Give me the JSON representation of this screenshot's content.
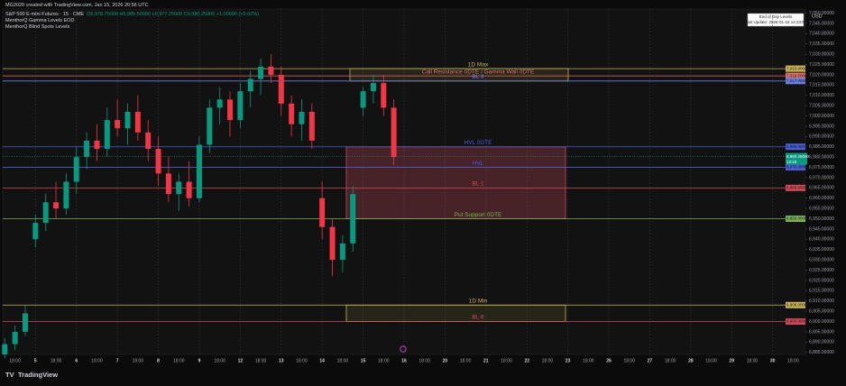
{
  "header": {
    "credit": "MG2020 created with TradingView.com, Jan 15, 2026 20:56 UTC",
    "symbol": "S&P 500 E-mini Futures · 15 · CME",
    "ohlc": "O6,978.75000 H6,985.50000 L6,977.25000 C6,980.25000 +1.00000 (+0.02%)",
    "indicators": [
      "MenthorQ Gamma Levels EOD",
      "MenthorQ Blind Spots Levels"
    ],
    "info_box": [
      "End of Day Levels",
      "Last Update: 2026-01-15 14:23:58"
    ],
    "currency": "USD",
    "brand": "TradingView"
  },
  "chart_data": {
    "type": "candlestick",
    "x": [
      -0.5,
      0,
      0.5,
      1,
      1.5,
      2,
      2.5,
      3,
      3.5,
      4,
      4.5,
      5,
      5.5,
      6,
      6.5,
      7,
      7.5,
      8,
      8.5,
      9,
      9.5,
      10,
      10.5,
      11,
      11.5,
      12,
      12.5,
      13,
      13.5,
      14,
      14.5,
      15,
      15.5,
      16,
      16.5,
      17,
      17.5,
      18,
      18.5
    ],
    "open": [
      6884,
      6889,
      6895,
      6940,
      6948,
      6958,
      6955,
      6968,
      6980,
      6988,
      6984,
      6998,
      6994,
      7002,
      6992,
      6984,
      6972,
      6962,
      6968,
      6960,
      6986,
      7004,
      7008,
      6998,
      7012,
      7018,
      7024,
      7020,
      7006,
      6996,
      7002,
      6960,
      6946,
      6930,
      6938,
      7004,
      7012,
      7016,
      7004
    ],
    "high": [
      6892,
      6898,
      6908,
      6952,
      6962,
      6968,
      6972,
      6985,
      6992,
      6996,
      7004,
      7008,
      7006,
      7010,
      6998,
      6990,
      6980,
      6972,
      6978,
      6990,
      7008,
      7014,
      7012,
      7016,
      7022,
      7028,
      7030,
      7024,
      7010,
      7008,
      7006,
      6968,
      6950,
      6942,
      6966,
      7014,
      7020,
      7020,
      7008
    ],
    "low": [
      6882,
      6886,
      6893,
      6936,
      6944,
      6950,
      6952,
      6962,
      6974,
      6978,
      6980,
      6990,
      6986,
      6988,
      6978,
      6966,
      6958,
      6954,
      6956,
      6958,
      6982,
      6996,
      6990,
      6994,
      7004,
      7010,
      7016,
      7000,
      6990,
      6988,
      6984,
      6940,
      6922,
      6924,
      6934,
      7000,
      7006,
      7000,
      6976
    ],
    "close": [
      6889,
      6895,
      6904,
      6948,
      6958,
      6955,
      6968,
      6980,
      6988,
      6984,
      6998,
      6994,
      7002,
      6992,
      6984,
      6972,
      6962,
      6968,
      6960,
      6986,
      7004,
      7008,
      6998,
      7012,
      7018,
      7024,
      7020,
      7006,
      6996,
      7002,
      6988,
      6946,
      6930,
      6938,
      6962,
      7012,
      7016,
      7004,
      6980
    ],
    "up_color": "#089981",
    "down_color": "#f23645",
    "xlim": [
      -0.6,
      38.6
    ],
    "xticks": [
      {
        "value": 0,
        "label": "18:00"
      },
      {
        "value": 1,
        "label": "5"
      },
      {
        "value": 2,
        "label": "18:00"
      },
      {
        "value": 3,
        "label": "6"
      },
      {
        "value": 4,
        "label": "18:00"
      },
      {
        "value": 5,
        "label": "7"
      },
      {
        "value": 6,
        "label": "18:00"
      },
      {
        "value": 7,
        "label": "8"
      },
      {
        "value": 8,
        "label": "18:00"
      },
      {
        "value": 9,
        "label": "9"
      },
      {
        "value": 10,
        "label": "18:00"
      },
      {
        "value": 11,
        "label": "12"
      },
      {
        "value": 12,
        "label": "18:00"
      },
      {
        "value": 13,
        "label": "13"
      },
      {
        "value": 14,
        "label": "18:00"
      },
      {
        "value": 15,
        "label": "14"
      },
      {
        "value": 16,
        "label": "18:00"
      },
      {
        "value": 17,
        "label": "15"
      },
      {
        "value": 18,
        "label": "18:00"
      },
      {
        "value": 19,
        "label": "16"
      },
      {
        "value": 20,
        "label": "18:00"
      },
      {
        "value": 21,
        "label": "20"
      },
      {
        "value": 22,
        "label": "18:00"
      },
      {
        "value": 23,
        "label": "21"
      },
      {
        "value": 24,
        "label": "18:00"
      },
      {
        "value": 25,
        "label": "22"
      },
      {
        "value": 26,
        "label": "18:00"
      },
      {
        "value": 27,
        "label": "23"
      },
      {
        "value": 28,
        "label": "18:00"
      },
      {
        "value": 29,
        "label": "26"
      },
      {
        "value": 30,
        "label": "18:00"
      },
      {
        "value": 31,
        "label": "27"
      },
      {
        "value": 32,
        "label": "18:00"
      },
      {
        "value": 33,
        "label": "28"
      },
      {
        "value": 34,
        "label": "18:00"
      },
      {
        "value": 35,
        "label": "29"
      },
      {
        "value": 36,
        "label": "18:00"
      },
      {
        "value": 37,
        "label": "30"
      },
      {
        "value": 38,
        "label": "18:00"
      }
    ],
    "ylim": [
      6884,
      7052
    ],
    "yticks": [
      {
        "value": 6885,
        "label": "6,885.00000"
      },
      {
        "value": 6890,
        "label": "6,890.00000"
      },
      {
        "value": 6895,
        "label": "6,895.00000"
      },
      {
        "value": 6900,
        "label": "6,900.00000"
      },
      {
        "value": 6905,
        "label": "6,905.00000"
      },
      {
        "value": 6910,
        "label": "6,910.00000"
      },
      {
        "value": 6915,
        "label": "6,915.00000"
      },
      {
        "value": 6920,
        "label": "6,920.00000"
      },
      {
        "value": 6925,
        "label": "6,925.00000"
      },
      {
        "value": 6930,
        "label": "6,930.00000"
      },
      {
        "value": 6935,
        "label": "6,935.00000"
      },
      {
        "value": 6940,
        "label": "6,940.00000"
      },
      {
        "value": 6945,
        "label": "6,945.00000"
      },
      {
        "value": 6950,
        "label": "6,950.00000"
      },
      {
        "value": 6955,
        "label": "6,955.00000"
      },
      {
        "value": 6960,
        "label": "6,960.00000"
      },
      {
        "value": 6965,
        "label": "6,965.00000"
      },
      {
        "value": 6970,
        "label": "6,970.00000"
      },
      {
        "value": 6975,
        "label": "6,975.00000"
      },
      {
        "value": 6980,
        "label": "6,980.00000"
      },
      {
        "value": 6985,
        "label": "6,985.00000"
      },
      {
        "value": 6990,
        "label": "6,990.00000"
      },
      {
        "value": 6995,
        "label": "6,995.00000"
      },
      {
        "value": 7000,
        "label": "7,000.00000"
      },
      {
        "value": 7005,
        "label": "7,005.00000"
      },
      {
        "value": 7010,
        "label": "7,010.00000"
      },
      {
        "value": 7015,
        "label": "7,015.00000"
      },
      {
        "value": 7020,
        "label": "7,020.00000"
      },
      {
        "value": 7025,
        "label": "7,025.00000"
      },
      {
        "value": 7030,
        "label": "7,030.00000"
      },
      {
        "value": 7035,
        "label": "7,035.00000"
      },
      {
        "value": 7040,
        "label": "7,040.00000"
      },
      {
        "value": 7045,
        "label": "7,045.00000"
      },
      {
        "value": 7050,
        "label": "7,050.00000"
      }
    ],
    "levels": [
      {
        "name": "1D Max",
        "value": 7023,
        "label": "7,023.00000",
        "color": "#c9b458"
      },
      {
        "name": "Call Resistance 0DTE / Gamma Wall 0DTE",
        "value": 7019.5,
        "label": "7,019.50000",
        "color": "#e0736a"
      },
      {
        "name": "BL 3",
        "value": 7017,
        "label": "7,017.00000",
        "color": "#6b7fe0"
      },
      {
        "name": "HVL 0DTE",
        "value": 6985,
        "label": "6,985.00000",
        "color": "#4a5fd6"
      },
      {
        "name": "HVL",
        "value": 6975,
        "label": "6,975.00000",
        "color": "#4a5fd6"
      },
      {
        "name": "BL 1",
        "value": 6965,
        "label": "6,965.00000",
        "color": "#d04a5a"
      },
      {
        "name": "Put Support 0DTE",
        "value": 6950,
        "label": "6,950.00000",
        "color": "#7cb356"
      },
      {
        "name": "1D Min",
        "value": 6908,
        "label": "6,908.00000",
        "color": "#c9b458"
      },
      {
        "name": "BL 6",
        "value": 6900,
        "label": "6,900.00000",
        "color": "#d04a5a"
      }
    ],
    "last_price": {
      "value": 6980.25,
      "label": "6,980.25000",
      "countdown": "13:19"
    }
  }
}
